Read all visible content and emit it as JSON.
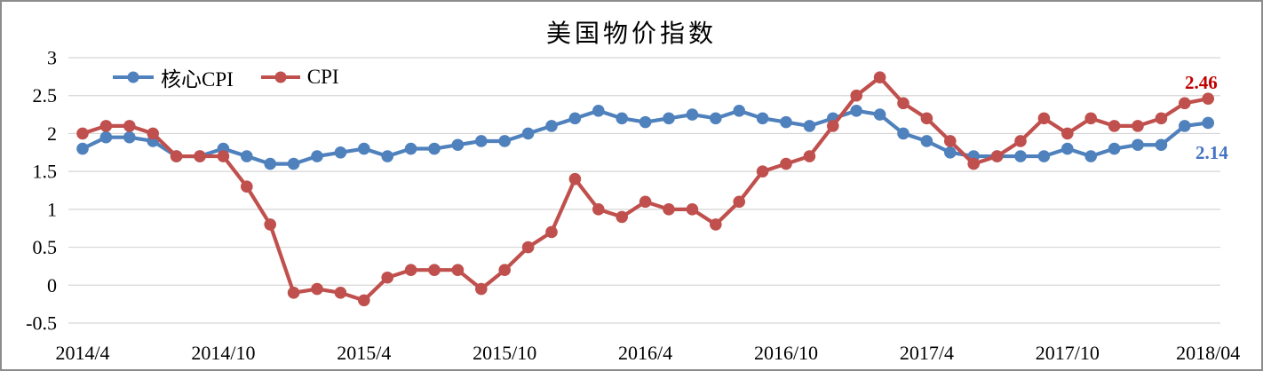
{
  "chart_data": {
    "type": "line",
    "title": "美国物价指数",
    "xlabel": "",
    "ylabel": "",
    "ylim": [
      -0.5,
      3
    ],
    "y_ticks": [
      3,
      2.5,
      2,
      1.5,
      1,
      0.5,
      0,
      -0.5
    ],
    "grid": "horizontal",
    "grid_color": "#D6D6D6",
    "legend_position": "top-left",
    "categories": [
      "2014/4",
      "2014/5",
      "2014/6",
      "2014/7",
      "2014/8",
      "2014/9",
      "2014/10",
      "2014/11",
      "2014/12",
      "2015/1",
      "2015/2",
      "2015/3",
      "2015/4",
      "2015/5",
      "2015/6",
      "2015/7",
      "2015/8",
      "2015/9",
      "2015/10",
      "2015/11",
      "2015/12",
      "2016/1",
      "2016/2",
      "2016/3",
      "2016/4",
      "2016/5",
      "2016/6",
      "2016/7",
      "2016/8",
      "2016/9",
      "2016/10",
      "2016/11",
      "2016/12",
      "2017/1",
      "2017/2",
      "2017/3",
      "2017/4",
      "2017/5",
      "2017/6",
      "2017/7",
      "2017/8",
      "2017/9",
      "2017/10",
      "2017/11",
      "2017/12",
      "2018/1",
      "2018/2",
      "2018/3",
      "2018/4"
    ],
    "x_axis_ticks": [
      {
        "label": "2014/4",
        "index": 0
      },
      {
        "label": "2014/10",
        "index": 6
      },
      {
        "label": "2015/4",
        "index": 12
      },
      {
        "label": "2015/10",
        "index": 18
      },
      {
        "label": "2016/4",
        "index": 24
      },
      {
        "label": "2016/10",
        "index": 30
      },
      {
        "label": "2017/4",
        "index": 36
      },
      {
        "label": "2017/10",
        "index": 42
      },
      {
        "label": "2018/04",
        "index": 48
      }
    ],
    "series": [
      {
        "name": "核心CPI",
        "slug": "core-cpi",
        "color": "#4F81BD",
        "marker": "circle",
        "values": [
          1.8,
          1.95,
          1.95,
          1.9,
          1.7,
          1.7,
          1.8,
          1.7,
          1.6,
          1.6,
          1.7,
          1.75,
          1.8,
          1.7,
          1.8,
          1.8,
          1.85,
          1.9,
          1.9,
          2.0,
          2.1,
          2.2,
          2.3,
          2.2,
          2.15,
          2.2,
          2.25,
          2.2,
          2.3,
          2.2,
          2.15,
          2.1,
          2.2,
          2.3,
          2.25,
          2.0,
          1.9,
          1.75,
          1.7,
          1.7,
          1.7,
          1.7,
          1.8,
          1.7,
          1.8,
          1.85,
          1.85,
          2.1,
          2.14
        ]
      },
      {
        "name": "CPI",
        "slug": "cpi",
        "color": "#C0504D",
        "marker": "circle",
        "values": [
          2.0,
          2.1,
          2.1,
          2.0,
          1.7,
          1.7,
          1.7,
          1.3,
          0.8,
          -0.1,
          -0.05,
          -0.1,
          -0.2,
          0.1,
          0.2,
          0.2,
          0.2,
          -0.05,
          0.2,
          0.5,
          0.7,
          1.4,
          1.0,
          0.9,
          1.1,
          1.0,
          1.0,
          0.8,
          1.1,
          1.5,
          1.6,
          1.7,
          2.1,
          2.5,
          2.74,
          2.4,
          2.2,
          1.9,
          1.6,
          1.7,
          1.9,
          2.2,
          2.0,
          2.2,
          2.1,
          2.1,
          2.2,
          2.4,
          2.46
        ]
      }
    ],
    "annotations": [
      {
        "text": "2.46",
        "series": "CPI",
        "color": "#C00000"
      },
      {
        "text": "2.14",
        "series": "核心CPI",
        "color": "#4472C4"
      }
    ]
  }
}
